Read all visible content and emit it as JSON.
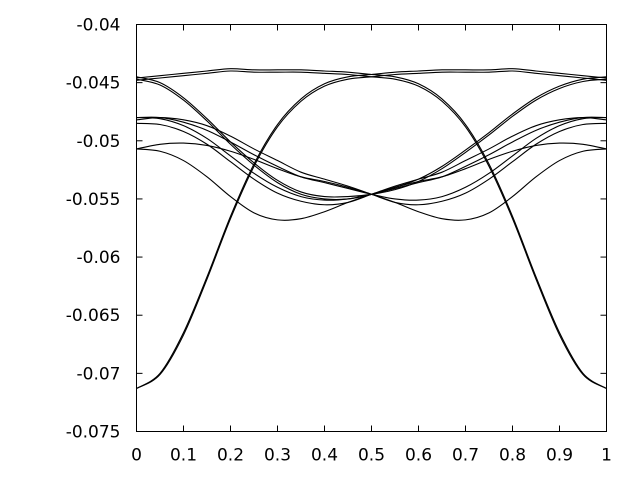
{
  "chart_data": {
    "type": "line",
    "title": "",
    "xlabel": "",
    "ylabel": "",
    "xlim": [
      0,
      1
    ],
    "ylim": [
      -0.075,
      -0.04
    ],
    "grid": false,
    "legend": "none",
    "x_ticks": [
      "0",
      "0.1",
      "0.2",
      "0.3",
      "0.4",
      "0.5",
      "0.6",
      "0.7",
      "0.8",
      "0.9",
      "1"
    ],
    "y_ticks": [
      "-0.04",
      "-0.045",
      "-0.05",
      "-0.055",
      "-0.06",
      "-0.065",
      "-0.07",
      "-0.075"
    ],
    "x": [
      0,
      0.05,
      0.1,
      0.15,
      0.2,
      0.25,
      0.3,
      0.35,
      0.4,
      0.45,
      0.5,
      0.55,
      0.6,
      0.65,
      0.7,
      0.75,
      0.8,
      0.85,
      0.9,
      0.95,
      1.0
    ],
    "series": [
      {
        "values": [
          -0.0713,
          -0.07,
          -0.0665,
          -0.0617,
          -0.0565,
          -0.052,
          -0.0486,
          -0.0464,
          -0.0451,
          -0.0445,
          -0.0443,
          -0.0441,
          -0.044,
          -0.0439,
          -0.0439,
          -0.0439,
          -0.0438,
          -0.044,
          -0.0442,
          -0.0444,
          -0.0446
        ]
      },
      {
        "values": [
          -0.0713,
          -0.0701,
          -0.0667,
          -0.0619,
          -0.0567,
          -0.0522,
          -0.0488,
          -0.0466,
          -0.0453,
          -0.0447,
          -0.0445,
          -0.0443,
          -0.0442,
          -0.0441,
          -0.0441,
          -0.0441,
          -0.044,
          -0.0442,
          -0.0444,
          -0.0446,
          -0.0448
        ]
      },
      {
        "values": [
          -0.0446,
          -0.0444,
          -0.0442,
          -0.044,
          -0.0438,
          -0.0439,
          -0.0439,
          -0.0439,
          -0.044,
          -0.0441,
          -0.0443,
          -0.0445,
          -0.0451,
          -0.0464,
          -0.0486,
          -0.052,
          -0.0565,
          -0.0617,
          -0.0665,
          -0.07,
          -0.0713
        ]
      },
      {
        "values": [
          -0.0448,
          -0.0446,
          -0.0444,
          -0.0442,
          -0.044,
          -0.0441,
          -0.0441,
          -0.0441,
          -0.0442,
          -0.0443,
          -0.0445,
          -0.0447,
          -0.0453,
          -0.0466,
          -0.0488,
          -0.0522,
          -0.0567,
          -0.0619,
          -0.0667,
          -0.0701,
          -0.0713
        ]
      },
      {
        "values": [
          -0.0445,
          -0.045,
          -0.0463,
          -0.0481,
          -0.0501,
          -0.0519,
          -0.0534,
          -0.0544,
          -0.0548,
          -0.0548,
          -0.0546,
          -0.0542,
          -0.0535,
          -0.0524,
          -0.051,
          -0.0495,
          -0.0479,
          -0.0465,
          -0.0455,
          -0.0449,
          -0.0447
        ]
      },
      {
        "values": [
          -0.0447,
          -0.0452,
          -0.0465,
          -0.0483,
          -0.0503,
          -0.0521,
          -0.0536,
          -0.0546,
          -0.055,
          -0.055,
          -0.0546,
          -0.054,
          -0.0533,
          -0.0522,
          -0.0508,
          -0.0493,
          -0.0477,
          -0.0463,
          -0.0453,
          -0.0447,
          -0.0445
        ]
      },
      {
        "values": [
          -0.048,
          -0.0481,
          -0.0487,
          -0.0498,
          -0.0513,
          -0.0528,
          -0.054,
          -0.0548,
          -0.0551,
          -0.055,
          -0.0546,
          -0.0541,
          -0.0536,
          -0.0531,
          -0.0522,
          -0.0512,
          -0.0501,
          -0.0491,
          -0.0484,
          -0.048,
          -0.048
        ]
      },
      {
        "values": [
          -0.048,
          -0.048,
          -0.0484,
          -0.0491,
          -0.0501,
          -0.0512,
          -0.0522,
          -0.0531,
          -0.0536,
          -0.0541,
          -0.0546,
          -0.055,
          -0.0551,
          -0.0548,
          -0.054,
          -0.0528,
          -0.0513,
          -0.0498,
          -0.0487,
          -0.0481,
          -0.048
        ]
      },
      {
        "values": [
          -0.0485,
          -0.0486,
          -0.0492,
          -0.0503,
          -0.0518,
          -0.0533,
          -0.0545,
          -0.0552,
          -0.0555,
          -0.0553,
          -0.0546,
          -0.0539,
          -0.0533,
          -0.0527,
          -0.0517,
          -0.0507,
          -0.0496,
          -0.0487,
          -0.0482,
          -0.048,
          -0.0482
        ]
      },
      {
        "values": [
          -0.0482,
          -0.048,
          -0.0482,
          -0.0487,
          -0.0496,
          -0.0507,
          -0.0517,
          -0.0527,
          -0.0533,
          -0.0539,
          -0.0546,
          -0.0553,
          -0.0555,
          -0.0552,
          -0.0545,
          -0.0533,
          -0.0518,
          -0.0503,
          -0.0492,
          -0.0486,
          -0.0485
        ]
      },
      {
        "values": [
          -0.0507,
          -0.0509,
          -0.0517,
          -0.0531,
          -0.0548,
          -0.0562,
          -0.0568,
          -0.0567,
          -0.0561,
          -0.0553,
          -0.0546,
          -0.054,
          -0.0535,
          -0.0531,
          -0.0524,
          -0.0516,
          -0.0509,
          -0.0504,
          -0.0502,
          -0.0503,
          -0.0507
        ]
      },
      {
        "values": [
          -0.0507,
          -0.0503,
          -0.0502,
          -0.0504,
          -0.0509,
          -0.0516,
          -0.0524,
          -0.0531,
          -0.0535,
          -0.054,
          -0.0546,
          -0.0553,
          -0.0561,
          -0.0567,
          -0.0568,
          -0.0562,
          -0.0548,
          -0.0531,
          -0.0517,
          -0.0509,
          -0.0507
        ]
      }
    ]
  }
}
